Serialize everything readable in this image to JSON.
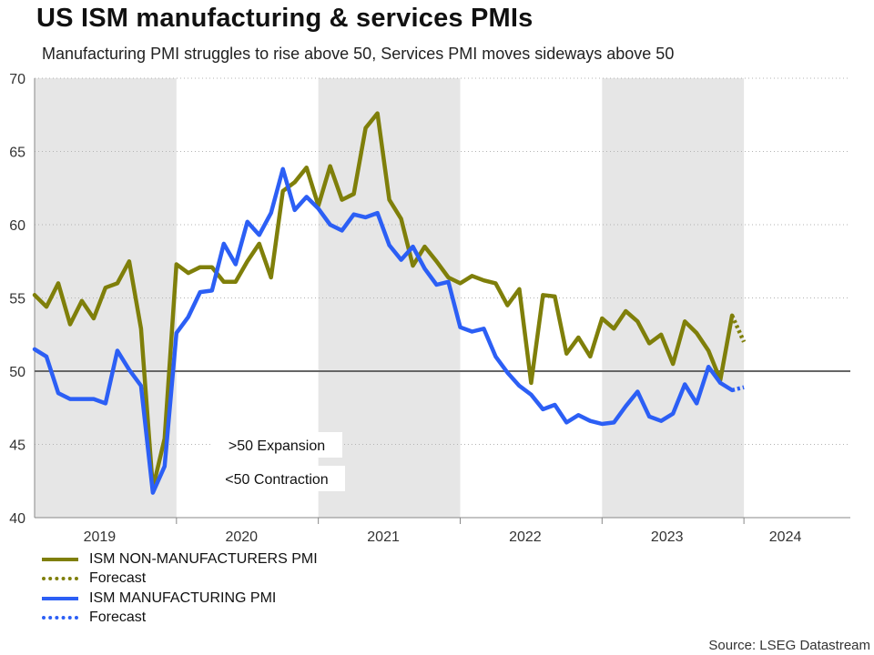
{
  "title": "US ISM manufacturing & services PMIs",
  "subtitle": "Manufacturing PMI struggles to rise above 50, Services PMI moves sideways above 50",
  "source": "Source: LSEG Datastream",
  "colors": {
    "services": "#7f7f0a",
    "manufacturing": "#2c5ff5",
    "shade": "#e6e6e6",
    "refline": "#666666"
  },
  "annotations": [
    ">50 Expansion",
    "<50 Contraction"
  ],
  "legend": [
    {
      "label": "ISM NON-MANUFACTURERS PMI",
      "style": "solid",
      "color": "#7f7f0a"
    },
    {
      "label": "Forecast",
      "style": "dotted",
      "color": "#7f7f0a"
    },
    {
      "label": "ISM MANUFACTURING PMI",
      "style": "solid",
      "color": "#2c5ff5"
    },
    {
      "label": "Forecast",
      "style": "dotted",
      "color": "#2c5ff5"
    }
  ],
  "chart_data": {
    "type": "line",
    "title": "US ISM manufacturing & services PMIs",
    "xlabel": "",
    "ylabel": "",
    "ylim": [
      40,
      70
    ],
    "yticks": [
      40,
      45,
      50,
      55,
      60,
      65,
      70
    ],
    "reference_line": 50,
    "x_start": "2019-01",
    "x_end_index": 69,
    "year_labels": [
      {
        "label": "2019",
        "center_index": 5.5
      },
      {
        "label": "2020",
        "center_index": 17.5
      },
      {
        "label": "2021",
        "center_index": 29.5
      },
      {
        "label": "2022",
        "center_index": 41.5
      },
      {
        "label": "2023",
        "center_index": 53.5
      },
      {
        "label": "2024",
        "center_index": 63.5
      }
    ],
    "shaded_years": [
      [
        0,
        12
      ],
      [
        24,
        36
      ],
      [
        48,
        60
      ]
    ],
    "series": [
      {
        "name": "ISM NON-MANUFACTURERS PMI",
        "start_index": 0,
        "values": [
          55.2,
          54.4,
          56.0,
          53.2,
          54.8,
          53.6,
          55.7,
          56.0,
          57.5,
          52.9,
          42.0,
          45.4,
          57.3,
          56.7,
          57.1,
          57.1,
          56.1,
          56.1,
          57.5,
          58.7,
          56.4,
          62.3,
          62.9,
          63.9,
          61.3,
          64.0,
          61.7,
          62.1,
          66.6,
          67.6,
          61.7,
          60.4,
          57.2,
          58.5,
          57.5,
          56.4,
          56.0,
          56.5,
          56.2,
          56.0,
          54.5,
          55.6,
          49.2,
          55.2,
          55.1,
          51.2,
          52.3,
          51.0,
          53.6,
          52.9,
          54.1,
          53.4,
          51.9,
          52.5,
          50.5,
          53.4,
          52.6,
          51.4,
          49.4,
          53.8
        ]
      },
      {
        "name": "Forecast (Non-Manufacturers)",
        "start_index": 59,
        "dotted": true,
        "values": [
          53.8,
          52.0
        ]
      },
      {
        "name": "ISM MANUFACTURING PMI",
        "start_index": 0,
        "values": [
          51.5,
          51.0,
          48.5,
          48.1,
          48.1,
          48.1,
          47.8,
          51.4,
          50.1,
          49.0,
          41.7,
          43.5,
          52.6,
          53.7,
          55.4,
          55.5,
          58.7,
          57.3,
          60.2,
          59.3,
          60.8,
          63.8,
          61.0,
          61.9,
          61.1,
          60.0,
          59.6,
          60.7,
          60.5,
          60.8,
          58.6,
          57.6,
          58.5,
          57.0,
          55.9,
          56.1,
          53.0,
          52.7,
          52.9,
          51.0,
          49.9,
          49.0,
          48.4,
          47.4,
          47.7,
          46.5,
          47.0,
          46.6,
          46.4,
          46.5,
          47.6,
          48.6,
          46.9,
          46.6,
          47.1,
          49.1,
          47.8,
          50.3,
          49.2,
          48.7
        ]
      },
      {
        "name": "Forecast (Manufacturing)",
        "start_index": 59,
        "dotted": true,
        "values": [
          48.7,
          48.9
        ]
      }
    ]
  }
}
